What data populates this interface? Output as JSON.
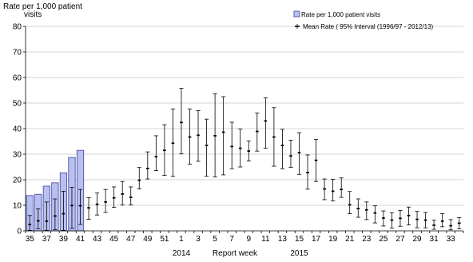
{
  "chart_data": {
    "type": "bar",
    "ylabel": "Rate per 1,000  patient visits",
    "ylabel_line1": "Rate per 1,000  patient",
    "ylabel_line2": "visits",
    "xlabel": "Report week",
    "ylim": [
      0,
      80
    ],
    "y_ticks": [
      "0",
      "10",
      "20",
      "30",
      "40",
      "50",
      "60",
      "70",
      "80"
    ],
    "grid": true,
    "legend_position": "top-right",
    "legend": [
      {
        "label": "Rate per 1,000 patient visits",
        "marker": "bar"
      },
      {
        "label": "Mean Rate ( 95% Interval (1996/97 - 2012/13)",
        "marker": "errorbar"
      }
    ],
    "x_ticks": [
      "35",
      "37",
      "39",
      "41",
      "43",
      "45",
      "47",
      "49",
      "51",
      "1",
      "3",
      "5",
      "7",
      "9",
      "11",
      "13",
      "15",
      "17",
      "19",
      "21",
      "23",
      "25",
      "27",
      "29",
      "31",
      "33"
    ],
    "year_labels": [
      {
        "label": "2014",
        "week": "1"
      },
      {
        "label": "2015",
        "week": "15"
      }
    ],
    "weeks": [
      "35",
      "36",
      "37",
      "38",
      "39",
      "40",
      "41",
      "42",
      "43",
      "44",
      "45",
      "46",
      "47",
      "48",
      "49",
      "50",
      "51",
      "52",
      "1",
      "2",
      "3",
      "4",
      "5",
      "6",
      "7",
      "8",
      "9",
      "10",
      "11",
      "12",
      "13",
      "14",
      "15",
      "16",
      "17",
      "18",
      "19",
      "20",
      "21",
      "22",
      "23",
      "24",
      "25",
      "26",
      "27",
      "28",
      "29",
      "30",
      "31",
      "32",
      "33",
      "34"
    ],
    "series": [
      {
        "name": "Rate per 1,000 patient visits",
        "kind": "bar",
        "color": "#b8c0f0",
        "values": [
          13.8,
          14.3,
          17.5,
          18.8,
          22.7,
          28.7,
          31.5
        ]
      },
      {
        "name": "Mean Rate ( 95% Interval (1996/97 - 2012/13)",
        "kind": "errorbar",
        "mean": [
          2.5,
          3.9,
          3.8,
          5.8,
          6.7,
          9.9,
          9.8,
          9.0,
          10.4,
          11.3,
          12.9,
          14.4,
          13.1,
          19.8,
          24.4,
          29.0,
          31.5,
          34.3,
          42.4,
          36.7,
          37.4,
          33.4,
          37.2,
          38.6,
          33.0,
          32.3,
          31.2,
          38.9,
          43.0,
          36.7,
          33.4,
          29.3,
          30.6,
          22.8,
          27.6,
          16.4,
          15.5,
          16.2,
          10.2,
          8.7,
          8.2,
          7.0,
          5.0,
          4.2,
          4.9,
          6.0,
          4.5,
          4.2,
          2.2,
          3.8,
          2.0,
          3.0
        ],
        "lower": [
          0.2,
          0.8,
          0.2,
          0.5,
          0.2,
          1.0,
          2.5,
          4.5,
          6.2,
          7.2,
          9.2,
          10.1,
          10.1,
          16.4,
          20.3,
          23.6,
          21.7,
          21.3,
          30.1,
          26.1,
          27.2,
          21.4,
          21.1,
          21.9,
          24.3,
          25.0,
          27.3,
          31.2,
          32.3,
          25.3,
          24.3,
          24.8,
          22.1,
          16.3,
          19.3,
          12.2,
          11.7,
          13.1,
          6.7,
          5.3,
          4.4,
          3.1,
          1.9,
          1.1,
          1.8,
          2.3,
          1.2,
          1.2,
          0.6,
          1.6,
          0.4,
          0.8
        ],
        "upper": [
          6.0,
          8.6,
          11.3,
          12.5,
          15.5,
          17.0,
          16.2,
          13.0,
          14.8,
          16.2,
          17.2,
          19.3,
          17.2,
          24.8,
          30.9,
          37.2,
          41.5,
          47.7,
          55.8,
          47.7,
          47.0,
          43.7,
          53.6,
          52.5,
          42.5,
          39.8,
          35.2,
          46.1,
          52.0,
          48.2,
          39.7,
          35.5,
          38.4,
          29.7,
          35.8,
          20.3,
          20.2,
          20.7,
          15.4,
          12.5,
          11.3,
          9.8,
          7.8,
          7.1,
          8.0,
          9.3,
          7.6,
          7.2,
          4.2,
          6.7,
          4.4,
          5.2
        ]
      }
    ]
  }
}
